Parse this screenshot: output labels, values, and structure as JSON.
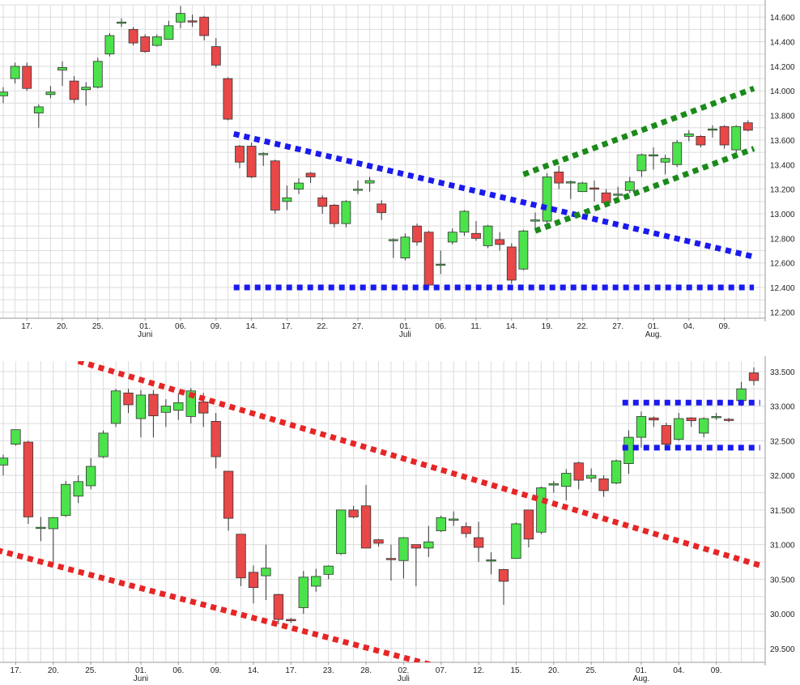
{
  "colors": {
    "up": "#4ce24c",
    "down": "#e84848",
    "wick": "#333333",
    "blue_line": "#1a1aee",
    "green_line": "#1a8a1a",
    "red_line": "#e62626",
    "grid": "#dcdcdc"
  },
  "chart_data": [
    {
      "type": "candlestick",
      "title": "",
      "ylim": [
        12150,
        14700
      ],
      "y_ticks": [
        "12.200",
        "12.400",
        "12.600",
        "12.800",
        "13.000",
        "13.200",
        "13.400",
        "13.600",
        "13.800",
        "14.000",
        "14.200",
        "14.400",
        "14.600"
      ],
      "y_tick_values": [
        12200,
        12400,
        12600,
        12800,
        13000,
        13200,
        13400,
        13600,
        13800,
        14000,
        14200,
        14400,
        14600
      ],
      "x_ticks": [
        {
          "i": 2,
          "label": "17."
        },
        {
          "i": 5,
          "label": "20."
        },
        {
          "i": 8,
          "label": "25."
        },
        {
          "i": 12,
          "label": "01.",
          "sub": "Juni"
        },
        {
          "i": 15,
          "label": "06."
        },
        {
          "i": 18,
          "label": "09."
        },
        {
          "i": 21,
          "label": "14."
        },
        {
          "i": 24,
          "label": "17."
        },
        {
          "i": 27,
          "label": "22."
        },
        {
          "i": 30,
          "label": "27."
        },
        {
          "i": 34,
          "label": "01.",
          "sub": "Juli"
        },
        {
          "i": 37,
          "label": "06."
        },
        {
          "i": 40,
          "label": "11."
        },
        {
          "i": 43,
          "label": "14."
        },
        {
          "i": 46,
          "label": "19."
        },
        {
          "i": 49,
          "label": "22."
        },
        {
          "i": 52,
          "label": "27."
        },
        {
          "i": 55,
          "label": "01.",
          "sub": "Aug."
        },
        {
          "i": 58,
          "label": "04."
        },
        {
          "i": 61,
          "label": "09."
        }
      ],
      "candles": [
        [
          13960,
          13990,
          13900,
          14030
        ],
        [
          14100,
          14200,
          14060,
          14230
        ],
        [
          14200,
          14020,
          14000,
          14230
        ],
        [
          13820,
          13870,
          13700,
          13890
        ],
        [
          13970,
          13990,
          13940,
          14040
        ],
        [
          14170,
          14190,
          14040,
          14240
        ],
        [
          14080,
          13930,
          13900,
          14120
        ],
        [
          14010,
          14030,
          13880,
          14070
        ],
        [
          14030,
          14240,
          14020,
          14270
        ],
        [
          14300,
          14450,
          14280,
          14470
        ],
        [
          14560,
          14560,
          14520,
          14590
        ],
        [
          14500,
          14390,
          14370,
          14520
        ],
        [
          14440,
          14320,
          14310,
          14460
        ],
        [
          14370,
          14440,
          14360,
          14460
        ],
        [
          14420,
          14530,
          14420,
          14570
        ],
        [
          14560,
          14630,
          14510,
          14690
        ],
        [
          14570,
          14560,
          14520,
          14620
        ],
        [
          14600,
          14450,
          14410,
          14610
        ],
        [
          14360,
          14210,
          14190,
          14430
        ],
        [
          14100,
          13770,
          13760,
          14110
        ],
        [
          13550,
          13420,
          13370,
          13560
        ],
        [
          13550,
          13300,
          13290,
          13580
        ],
        [
          13490,
          13490,
          13390,
          13500
        ],
        [
          13430,
          13030,
          13000,
          13440
        ],
        [
          13100,
          13130,
          13030,
          13230
        ],
        [
          13200,
          13250,
          13160,
          13290
        ],
        [
          13330,
          13300,
          13250,
          13340
        ],
        [
          13130,
          13060,
          13000,
          13150
        ],
        [
          13070,
          12920,
          12890,
          13080
        ],
        [
          12920,
          13100,
          12890,
          13110
        ],
        [
          13190,
          13200,
          13160,
          13270
        ],
        [
          13250,
          13270,
          13180,
          13300
        ],
        [
          13080,
          13010,
          12950,
          13110
        ],
        [
          12790,
          12790,
          12640,
          12800
        ],
        [
          12640,
          12810,
          12620,
          12840
        ],
        [
          12900,
          12770,
          12740,
          12920
        ],
        [
          12850,
          12420,
          12400,
          12860
        ],
        [
          12590,
          12590,
          12510,
          12700
        ],
        [
          12770,
          12850,
          12750,
          12880
        ],
        [
          12850,
          13020,
          12820,
          13030
        ],
        [
          12840,
          12800,
          12780,
          12940
        ],
        [
          12740,
          12900,
          12720,
          12910
        ],
        [
          12790,
          12750,
          12700,
          12850
        ],
        [
          12730,
          12460,
          12430,
          12760
        ],
        [
          12550,
          12860,
          12540,
          12870
        ],
        [
          12940,
          12950,
          12860,
          13010
        ],
        [
          12940,
          13300,
          12920,
          13330
        ],
        [
          13340,
          13250,
          13200,
          13390
        ],
        [
          13260,
          13260,
          13120,
          13270
        ],
        [
          13180,
          13250,
          13180,
          13260
        ],
        [
          13210,
          13200,
          13100,
          13270
        ],
        [
          13170,
          13090,
          13090,
          13200
        ],
        [
          13160,
          13160,
          13130,
          13220
        ],
        [
          13190,
          13260,
          13170,
          13300
        ],
        [
          13350,
          13480,
          13300,
          13490
        ],
        [
          13480,
          13480,
          13360,
          13540
        ],
        [
          13420,
          13450,
          13320,
          13480
        ],
        [
          13400,
          13580,
          13380,
          13600
        ],
        [
          13630,
          13650,
          13590,
          13680
        ],
        [
          13630,
          13560,
          13540,
          13640
        ],
        [
          13680,
          13690,
          13620,
          13720
        ],
        [
          13710,
          13560,
          13530,
          13720
        ],
        [
          13520,
          13710,
          13500,
          13720
        ],
        [
          13740,
          13680,
          13670,
          13760
        ]
      ],
      "lines": [
        {
          "color": "blue",
          "from": [
            19.5,
            13650
          ],
          "to": [
            63.5,
            12650
          ]
        },
        {
          "color": "blue",
          "from": [
            19.5,
            12400
          ],
          "to": [
            63.5,
            12400
          ]
        },
        {
          "color": "green",
          "from": [
            44,
            13320
          ],
          "to": [
            63.5,
            14020
          ]
        },
        {
          "color": "green",
          "from": [
            45,
            12860
          ],
          "to": [
            63.5,
            13530
          ]
        }
      ]
    },
    {
      "type": "candlestick",
      "title": "",
      "ylim": [
        29300,
        33650
      ],
      "y_ticks": [
        "29.500",
        "30.000",
        "30.500",
        "31.000",
        "31.500",
        "32.000",
        "32.500",
        "33.000",
        "33.500"
      ],
      "y_tick_values": [
        29500,
        30000,
        30500,
        31000,
        31500,
        32000,
        32500,
        33000,
        33500
      ],
      "x_ticks": [
        {
          "i": 1,
          "label": "17."
        },
        {
          "i": 4,
          "label": "20."
        },
        {
          "i": 7,
          "label": "25."
        },
        {
          "i": 11,
          "label": "01.",
          "sub": "Juni"
        },
        {
          "i": 14,
          "label": "06."
        },
        {
          "i": 17,
          "label": "09."
        },
        {
          "i": 20,
          "label": "14."
        },
        {
          "i": 23,
          "label": "17."
        },
        {
          "i": 26,
          "label": "23."
        },
        {
          "i": 29,
          "label": "28."
        },
        {
          "i": 32,
          "label": "02.",
          "sub": "Juli"
        },
        {
          "i": 35,
          "label": "07."
        },
        {
          "i": 38,
          "label": "12."
        },
        {
          "i": 41,
          "label": "15."
        },
        {
          "i": 44,
          "label": "20."
        },
        {
          "i": 47,
          "label": "25."
        },
        {
          "i": 51,
          "label": "01.",
          "sub": "Aug."
        },
        {
          "i": 54,
          "label": "04."
        },
        {
          "i": 57,
          "label": "09."
        }
      ],
      "candles": [
        [
          32150,
          32250,
          32000,
          32300
        ],
        [
          32450,
          32660,
          32430,
          32660
        ],
        [
          32480,
          31400,
          31300,
          32500
        ],
        [
          31250,
          31250,
          31050,
          31400
        ],
        [
          31230,
          31390,
          30700,
          31400
        ],
        [
          31420,
          31870,
          31400,
          31920
        ],
        [
          31700,
          31910,
          31600,
          32000
        ],
        [
          31850,
          32130,
          31800,
          32250
        ],
        [
          32270,
          32610,
          32250,
          32650
        ],
        [
          32750,
          33220,
          32700,
          33250
        ],
        [
          33190,
          33020,
          32900,
          33250
        ],
        [
          32820,
          33160,
          32550,
          33230
        ],
        [
          33170,
          32860,
          32550,
          33230
        ],
        [
          32910,
          33000,
          32700,
          33100
        ],
        [
          32940,
          33050,
          32800,
          33180
        ],
        [
          32850,
          33220,
          32750,
          33260
        ],
        [
          33060,
          32900,
          32700,
          33190
        ],
        [
          32780,
          32270,
          32100,
          32900
        ],
        [
          32060,
          31380,
          31200,
          32060
        ],
        [
          31150,
          30520,
          30400,
          31150
        ],
        [
          30600,
          30380,
          30150,
          30700
        ],
        [
          30550,
          30660,
          30200,
          31000
        ],
        [
          30280,
          29920,
          29850,
          30290
        ],
        [
          29920,
          29900,
          29870,
          29940
        ],
        [
          30090,
          30530,
          30000,
          30620
        ],
        [
          30400,
          30540,
          30320,
          30650
        ],
        [
          30570,
          30690,
          30500,
          30700
        ],
        [
          30870,
          31500,
          30850,
          31500
        ],
        [
          31500,
          31400,
          31380,
          31560
        ],
        [
          31560,
          30950,
          30950,
          31860
        ],
        [
          31070,
          31020,
          30970,
          31080
        ],
        [
          30800,
          30790,
          30480,
          31000
        ],
        [
          30770,
          31100,
          30510,
          31110
        ],
        [
          31000,
          30950,
          30400,
          31000
        ],
        [
          30950,
          31040,
          30820,
          31270
        ],
        [
          31200,
          31390,
          31180,
          31420
        ],
        [
          31370,
          31370,
          31270,
          31480
        ],
        [
          31260,
          31160,
          31100,
          31320
        ],
        [
          31100,
          30960,
          30750,
          31330
        ],
        [
          30780,
          30780,
          30570,
          30890
        ],
        [
          30640,
          30470,
          30130,
          30650
        ],
        [
          30800,
          31300,
          30800,
          31320
        ],
        [
          31500,
          31080,
          30960,
          31500
        ],
        [
          31180,
          31820,
          31150,
          31840
        ],
        [
          31860,
          31880,
          31750,
          31920
        ],
        [
          31840,
          32030,
          31640,
          32090
        ],
        [
          32180,
          31930,
          31800,
          32200
        ],
        [
          31960,
          32000,
          31900,
          32100
        ],
        [
          31950,
          31780,
          31690,
          32000
        ],
        [
          31890,
          32210,
          31870,
          32230
        ],
        [
          32170,
          32550,
          32020,
          32650
        ],
        [
          32550,
          32850,
          32400,
          32920
        ],
        [
          32830,
          32800,
          32700,
          32850
        ],
        [
          32720,
          32450,
          32380,
          32760
        ],
        [
          32520,
          32820,
          32500,
          32900
        ],
        [
          32830,
          32790,
          32700,
          32840
        ],
        [
          32610,
          32820,
          32550,
          32840
        ],
        [
          32850,
          32850,
          32800,
          32900
        ],
        [
          32810,
          32800,
          32770,
          32830
        ],
        [
          33080,
          33250,
          33000,
          33350
        ],
        [
          33480,
          33370,
          33300,
          33560
        ]
      ],
      "lines": [
        {
          "color": "blue",
          "from": [
            49.5,
            33050
          ],
          "to": [
            60.5,
            33050
          ]
        },
        {
          "color": "blue",
          "from": [
            49.5,
            32400
          ],
          "to": [
            60.5,
            32400
          ]
        },
        {
          "color": "red",
          "from": [
            6,
            33650
          ],
          "to": [
            60.5,
            30700
          ]
        },
        {
          "color": "red",
          "from": [
            -0.5,
            30920
          ],
          "to": [
            34.5,
            29250
          ]
        }
      ]
    }
  ]
}
